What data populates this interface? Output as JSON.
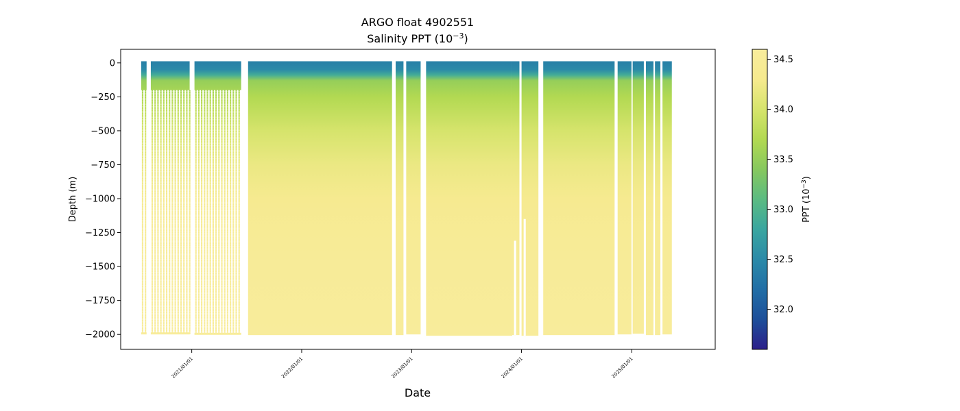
{
  "chart_data": {
    "type": "heatmap",
    "title": "ARGO float 4902551",
    "subtitle_prefix": "Salinity PPT (10",
    "subtitle_exponent": "−3",
    "subtitle_suffix": ")",
    "xlabel": "Date",
    "ylabel": "Depth (m)",
    "x_ticks": [
      "2021/01/01",
      "2022/01/01",
      "2023/01/01",
      "2024/01/01",
      "2025/01/01"
    ],
    "y_ticks": [
      0,
      -250,
      -500,
      -750,
      -1000,
      -1250,
      -1500,
      -1750,
      -2000
    ],
    "y_tick_labels": [
      "0",
      "−250",
      "−500",
      "−750",
      "−1000",
      "−1250",
      "−1500",
      "−1750",
      "−2000"
    ],
    "xlim": [
      "2020/05/10",
      "2025/10/05"
    ],
    "ylim": [
      -2110,
      100
    ],
    "colorbar": {
      "label_prefix": "PPT (10",
      "label_exponent": "−3",
      "label_suffix": ")",
      "range": [
        31.6,
        34.6
      ],
      "ticks": [
        32.0,
        32.5,
        33.0,
        33.5,
        34.0,
        34.5
      ],
      "tick_labels": [
        "32.0",
        "32.5",
        "33.0",
        "33.5",
        "34.0",
        "34.5"
      ],
      "colormap": "YlGnBu_r",
      "colors": [
        "#2c1f8a",
        "#1d4f9a",
        "#216ea6",
        "#2b8aa8",
        "#3aa6a0",
        "#5bbb82",
        "#86c85e",
        "#b2d952",
        "#d6e46c",
        "#f6ea8e",
        "#f8ec9c"
      ]
    },
    "profile_segments": [
      {
        "start": "2020/07/17",
        "end": "2020/08/04",
        "bottom": -1995,
        "sparse_below": -200
      },
      {
        "start": "2020/08/18",
        "end": "2020/12/25",
        "bottom": -1995,
        "sparse_below": -200
      },
      {
        "start": "2021/01/10",
        "end": "2021/06/14",
        "bottom": -1998,
        "sparse_below": -200
      },
      {
        "start": "2021/07/07",
        "end": "2022/10/28",
        "bottom": -2005
      },
      {
        "start": "2022/11/09",
        "end": "2022/12/05",
        "bottom": -2005
      },
      {
        "start": "2022/12/14",
        "end": "2023/01/31",
        "bottom": -2000
      },
      {
        "start": "2023/02/18",
        "end": "2023/12/01",
        "bottom": -2010
      },
      {
        "start": "2023/12/01",
        "end": "2023/12/25",
        "bottom": -2005,
        "gaps": [
          {
            "start": "2023/12/07",
            "end": "2023/12/14",
            "from": -1310,
            "to": -2005
          }
        ]
      },
      {
        "start": "2024/01/01",
        "end": "2024/02/26",
        "bottom": -2010,
        "gaps": [
          {
            "start": "2024/01/08",
            "end": "2024/01/15",
            "from": -1150,
            "to": -2010
          }
        ]
      },
      {
        "start": "2024/03/13",
        "end": "2024/11/05",
        "bottom": -2005
      },
      {
        "start": "2024/11/15",
        "end": "2024/12-31",
        "bottom": -2000
      },
      {
        "start": "2025/01/04",
        "end": "2025/02/10",
        "bottom": -1995
      },
      {
        "start": "2025/02/17",
        "end": "2025/03/14",
        "bottom": -2005
      },
      {
        "start": "2025/03/19",
        "end": "2025/04/06",
        "bottom": -2005
      },
      {
        "start": "2025/04/13",
        "end": "2025/05/14",
        "bottom": -2000
      }
    ],
    "salinity_profile": [
      {
        "depth": 0,
        "salinity": 32.4
      },
      {
        "depth": -50,
        "salinity": 32.5
      },
      {
        "depth": -90,
        "salinity": 32.9
      },
      {
        "depth": -130,
        "salinity": 33.5
      },
      {
        "depth": -250,
        "salinity": 33.7
      },
      {
        "depth": -500,
        "salinity": 34.0
      },
      {
        "depth": -750,
        "salinity": 34.2
      },
      {
        "depth": -1000,
        "salinity": 34.35
      },
      {
        "depth": -1250,
        "salinity": 34.45
      },
      {
        "depth": -1500,
        "salinity": 34.52
      },
      {
        "depth": -2000,
        "salinity": 34.58
      }
    ]
  }
}
